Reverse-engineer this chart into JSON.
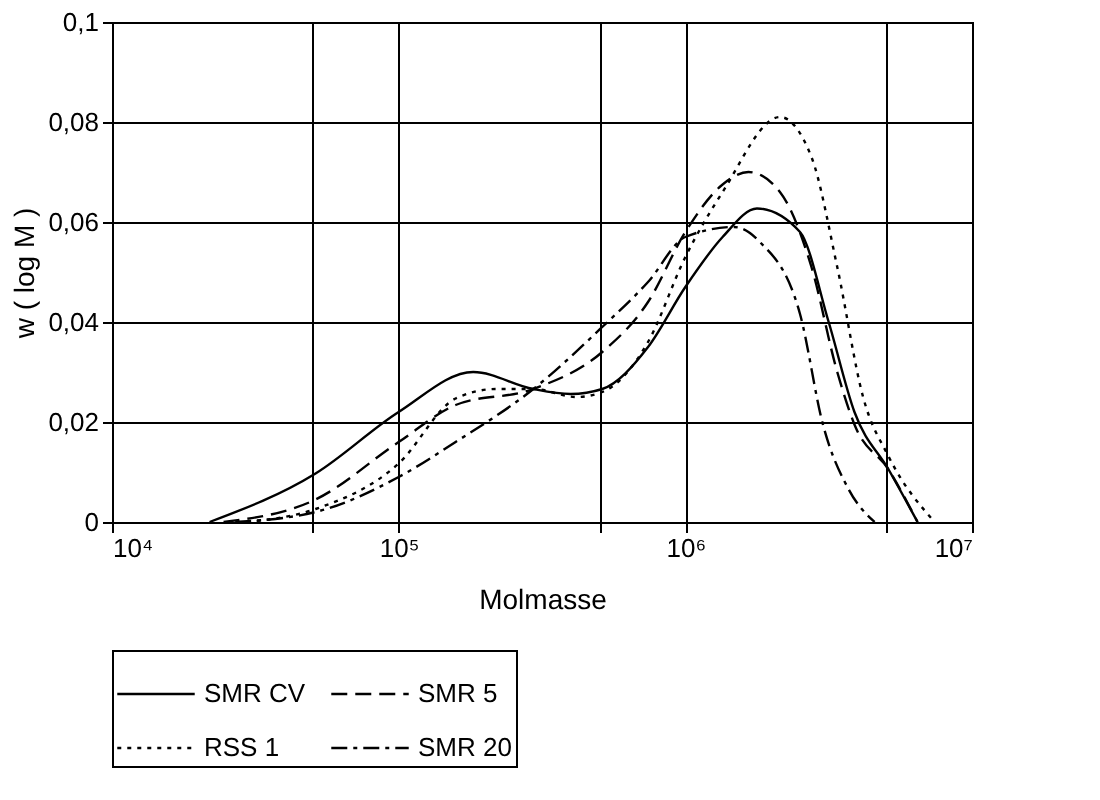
{
  "chart_data": {
    "type": "line",
    "xlabel": "Molmasse",
    "ylabel": "w ( log M )",
    "log": "x",
    "grid": true,
    "legend": "bottom",
    "marker": "none",
    "xlim": [
      10000,
      10000000
    ],
    "ylim": [
      0,
      0.1
    ],
    "xticks": [
      {
        "value": 10000,
        "label": "10⁴"
      },
      {
        "value": 50000,
        "label": null
      },
      {
        "value": 100000,
        "label": "10⁵"
      },
      {
        "value": 500000,
        "label": null
      },
      {
        "value": 1000000,
        "label": "10⁶"
      },
      {
        "value": 5000000,
        "label": null
      },
      {
        "value": 10000000,
        "label": "10⁷"
      }
    ],
    "yticks": [
      0,
      {
        "value": 0.02,
        "label": "0,02"
      },
      {
        "value": 0.04,
        "label": "0,04"
      },
      {
        "value": 0.06,
        "label": "0,06"
      },
      {
        "value": 0.08,
        "label": "0,08"
      },
      {
        "value": 0.1,
        "label": "0,1"
      }
    ],
    "series": [
      {
        "name": "SMR CV",
        "color": "#000000",
        "line_style": "solid",
        "x": [
          21900,
          51300,
          100000,
          182000,
          295000,
          398000,
          513000,
          741000,
          1000000,
          1349000,
          1778000,
          2512000,
          3162000,
          3890000,
          5129000,
          6457000
        ],
        "values": [
          0,
          0.0097,
          0.022,
          0.03,
          0.0266,
          0.0256,
          0.0266,
          0.035,
          0.047,
          0.057,
          0.0627,
          0.058,
          0.04,
          0.022,
          0.0104,
          0
        ]
      },
      {
        "name": "SMR 5",
        "color": "#000000",
        "line_style": "dashed",
        "x": [
          24500,
          51300,
          100000,
          158000,
          295000,
          513000,
          741000,
          1000000,
          1349000,
          1660000,
          2138000,
          2754000,
          3388000,
          3890000,
          5129000,
          6457000
        ],
        "values": [
          0,
          0.0045,
          0.016,
          0.0234,
          0.0266,
          0.034,
          0.044,
          0.058,
          0.0675,
          0.07,
          0.066,
          0.051,
          0.03,
          0.0195,
          0.0104,
          0
        ]
      },
      {
        "name": "RSS  1",
        "color": "#000000",
        "line_style": "dotted",
        "x": [
          29500,
          51300,
          100000,
          158000,
          219000,
          295000,
          417000,
          513000,
          741000,
          1000000,
          1349000,
          2138000,
          2754000,
          3388000,
          4169000,
          5129000,
          7413000
        ],
        "values": [
          0,
          0.0026,
          0.0117,
          0.0247,
          0.0266,
          0.0266,
          0.025,
          0.026,
          0.036,
          0.053,
          0.066,
          0.081,
          0.073,
          0.051,
          0.025,
          0.013,
          0
        ]
      },
      {
        "name": "SMR 20",
        "color": "#000000",
        "line_style": "dashdot",
        "x": [
          26900,
          51300,
          100000,
          158000,
          295000,
          513000,
          741000,
          1000000,
          1479000,
          1820000,
          2512000,
          3020000,
          3715000,
          4571000
        ],
        "values": [
          0,
          0.002,
          0.009,
          0.016,
          0.0266,
          0.039,
          0.048,
          0.057,
          0.059,
          0.056,
          0.0416,
          0.0195,
          0.0065,
          0
        ]
      }
    ]
  }
}
